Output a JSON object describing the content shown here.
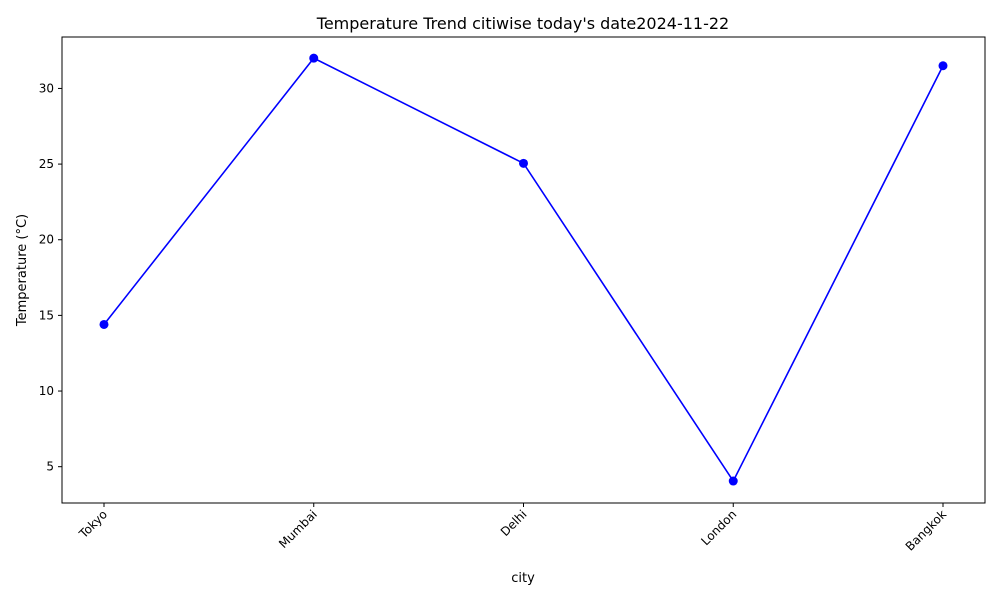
{
  "chart_data": {
    "type": "line",
    "title": "Temperature Trend citiwise today's date2024-11-22",
    "xlabel": "city",
    "ylabel": "Temperature (°C)",
    "categories": [
      "Tokyo",
      "Mumbai",
      "Delhi",
      "London",
      "Bangkok"
    ],
    "series": [
      {
        "values": [
          14.4,
          32.0,
          25.05,
          4.05,
          31.5
        ],
        "color": "#0000ff",
        "marker": "circle"
      }
    ],
    "ylim": [
      2.6,
      33.4
    ],
    "yticks": [
      5,
      10,
      15,
      20,
      25,
      30
    ],
    "xtick_rotation": 45,
    "grid": false,
    "legend": "none"
  }
}
